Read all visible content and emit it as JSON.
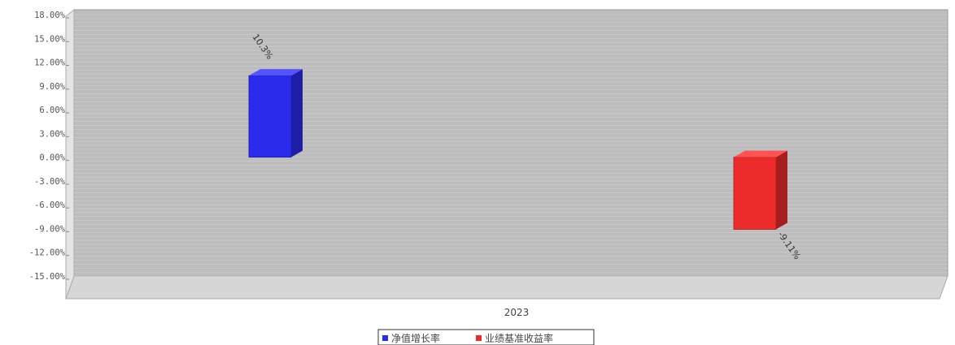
{
  "chart_data": {
    "type": "bar",
    "title": "",
    "categories": [
      "2023"
    ],
    "series": [
      {
        "name": "净值增长率",
        "values": [
          10.3
        ],
        "label": "10.3%",
        "color": "#2b2bee"
      },
      {
        "name": "业绩基准收益率",
        "values": [
          -9.11
        ],
        "label": "-9.11%",
        "color": "#ee2b2b"
      }
    ],
    "ylim": [
      -15,
      18
    ],
    "yticks": [
      18,
      15,
      12,
      9,
      6,
      3,
      0,
      -3,
      -6,
      -9,
      -12,
      -15
    ],
    "ytick_labels": [
      "18.00%",
      "15.00%",
      "12.00%",
      "9.00%",
      "6.00%",
      "3.00%",
      "0.00%",
      "-3.00%",
      "-6.00%",
      "-9.00%",
      "-12.00%",
      "-15.00%"
    ],
    "grid": true,
    "legend_position": "bottom-center",
    "plot_background": "#bdbdbd"
  }
}
